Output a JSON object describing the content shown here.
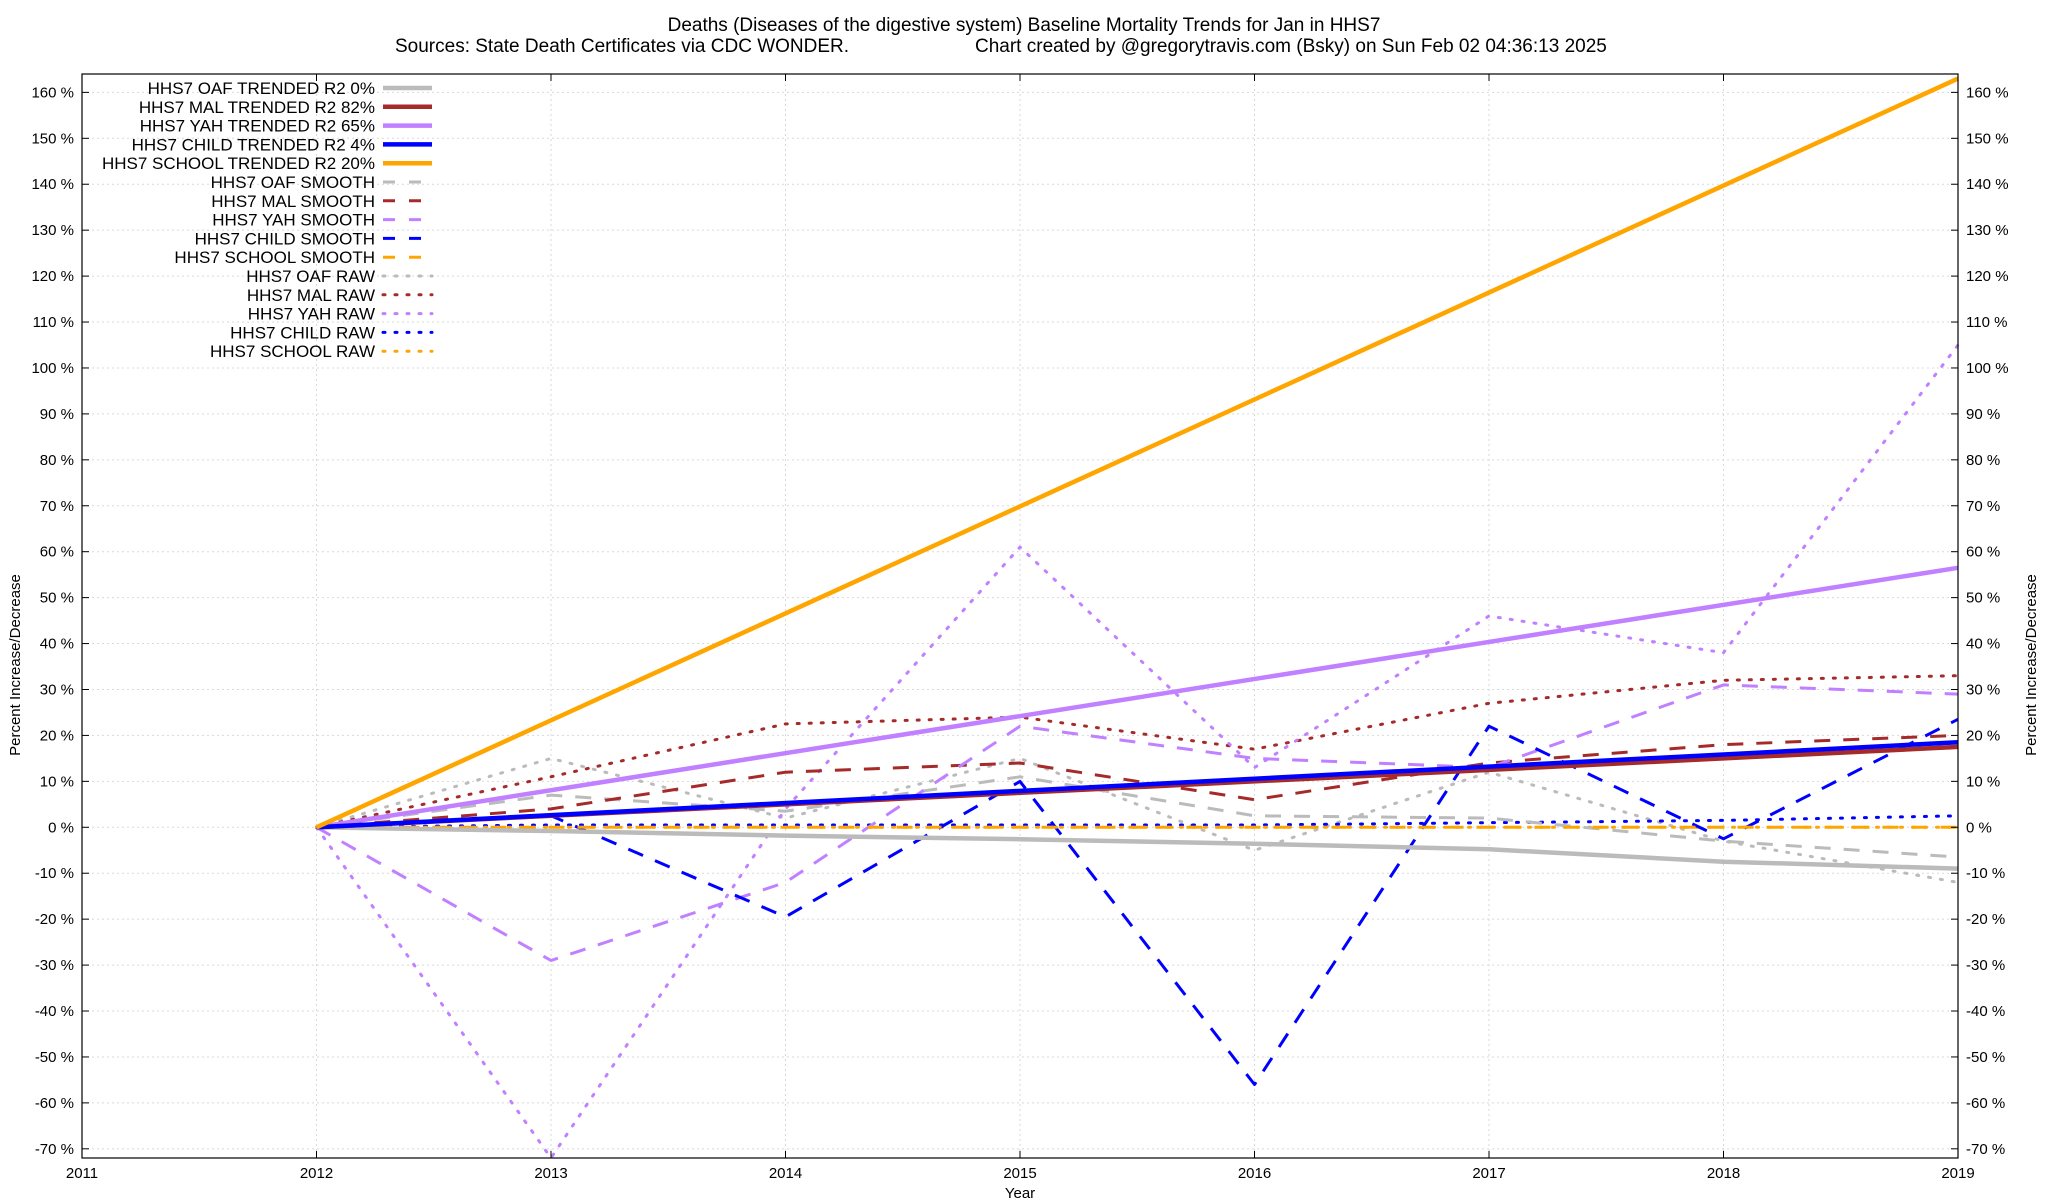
{
  "chart_data": {
    "type": "line",
    "title": "Deaths (Diseases of the digestive system)  Baseline Mortality Trends for Jan in HHS7",
    "subtitle_left": "Sources: State Death Certificates via CDC WONDER.",
    "subtitle_right": "Chart created by @gregorytravis.com (Bsky) on Sun Feb 02 04:36:13 2025",
    "xlabel": "Year",
    "ylabel_left": "Percent Increase/Decrease",
    "ylabel_right": "Percent Increase/Decrease",
    "xlim": [
      2011,
      2019
    ],
    "ylim": [
      -72,
      164
    ],
    "x_ticks": [
      2011,
      2012,
      2013,
      2014,
      2015,
      2016,
      2017,
      2018,
      2019
    ],
    "y_ticks": [
      160,
      150,
      140,
      130,
      120,
      110,
      100,
      90,
      80,
      70,
      60,
      50,
      40,
      30,
      20,
      10,
      0,
      -10,
      -20,
      -30,
      -40,
      -50,
      -60,
      -70
    ],
    "y_tick_suffix": " %",
    "grid": true,
    "legend_position": "top-left",
    "series": [
      {
        "name": "HHS7 OAF TRENDED R2",
        "r2": "0%",
        "style": "solid",
        "color": "#bbbbbb",
        "x": [
          2012,
          2013,
          2014,
          2015,
          2016,
          2017,
          2018,
          2019
        ],
        "values": [
          0,
          -0.8,
          -1.8,
          -2.6,
          -3.6,
          -4.8,
          -7.5,
          -9
        ]
      },
      {
        "name": "HHS7 MAL TRENDED R2",
        "r2": "82%",
        "style": "solid",
        "color": "#a52a2a",
        "x": [
          2012,
          2019
        ],
        "values": [
          0,
          17.5
        ]
      },
      {
        "name": "HHS7 YAH TRENDED R2",
        "r2": "65%",
        "style": "solid",
        "color": "#c080ff",
        "x": [
          2012,
          2019
        ],
        "values": [
          0,
          56.5
        ]
      },
      {
        "name": "HHS7 CHILD TRENDED R2",
        "r2": "4%",
        "style": "solid",
        "color": "#0000ff",
        "x": [
          2012,
          2019
        ],
        "values": [
          0,
          18.5
        ]
      },
      {
        "name": "HHS7 SCHOOL TRENDED R2",
        "r2": "20%",
        "style": "solid",
        "color": "#ffa500",
        "x": [
          2012,
          2019
        ],
        "values": [
          0,
          163
        ]
      },
      {
        "name": "HHS7 OAF SMOOTH",
        "style": "dashed",
        "color": "#bbbbbb",
        "x": [
          2012,
          2013,
          2014,
          2015,
          2016,
          2017,
          2018,
          2019
        ],
        "values": [
          0,
          7,
          3.5,
          11,
          2.5,
          2,
          -3,
          -6.5
        ]
      },
      {
        "name": "HHS7 MAL SMOOTH",
        "style": "dashed",
        "color": "#a52a2a",
        "x": [
          2012,
          2013,
          2014,
          2015,
          2016,
          2017,
          2018,
          2019
        ],
        "values": [
          0,
          4,
          12,
          14,
          6,
          14,
          18,
          20
        ]
      },
      {
        "name": "HHS7 YAH SMOOTH",
        "style": "dashed",
        "color": "#c080ff",
        "x": [
          2012,
          2013,
          2014,
          2015,
          2016,
          2017,
          2018,
          2019
        ],
        "values": [
          0,
          -29,
          -12,
          22,
          15,
          13,
          31,
          29
        ]
      },
      {
        "name": "HHS7 CHILD SMOOTH",
        "style": "dashed",
        "color": "#0000ff",
        "x": [
          2012,
          2013,
          2014,
          2015,
          2016,
          2017,
          2018,
          2019
        ],
        "values": [
          0,
          2.5,
          -19.5,
          10,
          -56,
          22,
          -2.5,
          23.5
        ]
      },
      {
        "name": "HHS7 SCHOOL SMOOTH",
        "style": "dashed",
        "color": "#ffa500",
        "x": [
          2012,
          2013,
          2014,
          2015,
          2016,
          2017,
          2018,
          2019
        ],
        "values": [
          0,
          0,
          0,
          0,
          0,
          0,
          0,
          0
        ]
      },
      {
        "name": "HHS7 OAF RAW",
        "style": "dotted",
        "color": "#bbbbbb",
        "x": [
          2012,
          2013,
          2014,
          2015,
          2016,
          2017,
          2018,
          2019
        ],
        "values": [
          0,
          15,
          2,
          15,
          -5,
          12,
          -3,
          -12
        ]
      },
      {
        "name": "HHS7 MAL RAW",
        "style": "dotted",
        "color": "#a52a2a",
        "x": [
          2012,
          2013,
          2014,
          2015,
          2016,
          2017,
          2018,
          2019
        ],
        "values": [
          0,
          11,
          22.5,
          24,
          17,
          27,
          32,
          33
        ]
      },
      {
        "name": "HHS7 YAH RAW",
        "style": "dotted",
        "color": "#c080ff",
        "x": [
          2012,
          2013,
          2014,
          2015,
          2016,
          2017,
          2018,
          2019
        ],
        "values": [
          0,
          -72,
          4,
          61,
          13,
          46,
          38,
          105
        ]
      },
      {
        "name": "HHS7 CHILD RAW",
        "style": "dotted",
        "color": "#0000ff",
        "x": [
          2012,
          2013,
          2014,
          2015,
          2016,
          2017,
          2018,
          2019
        ],
        "values": [
          0,
          0.5,
          0.5,
          0.5,
          0.5,
          1,
          1.5,
          2.5
        ]
      },
      {
        "name": "HHS7 SCHOOL RAW",
        "style": "dotted",
        "color": "#ffa500",
        "x": [
          2012,
          2013,
          2014,
          2015,
          2016,
          2017,
          2018,
          2019
        ],
        "values": [
          0,
          0,
          0,
          0,
          0,
          0,
          0,
          0
        ]
      }
    ]
  }
}
